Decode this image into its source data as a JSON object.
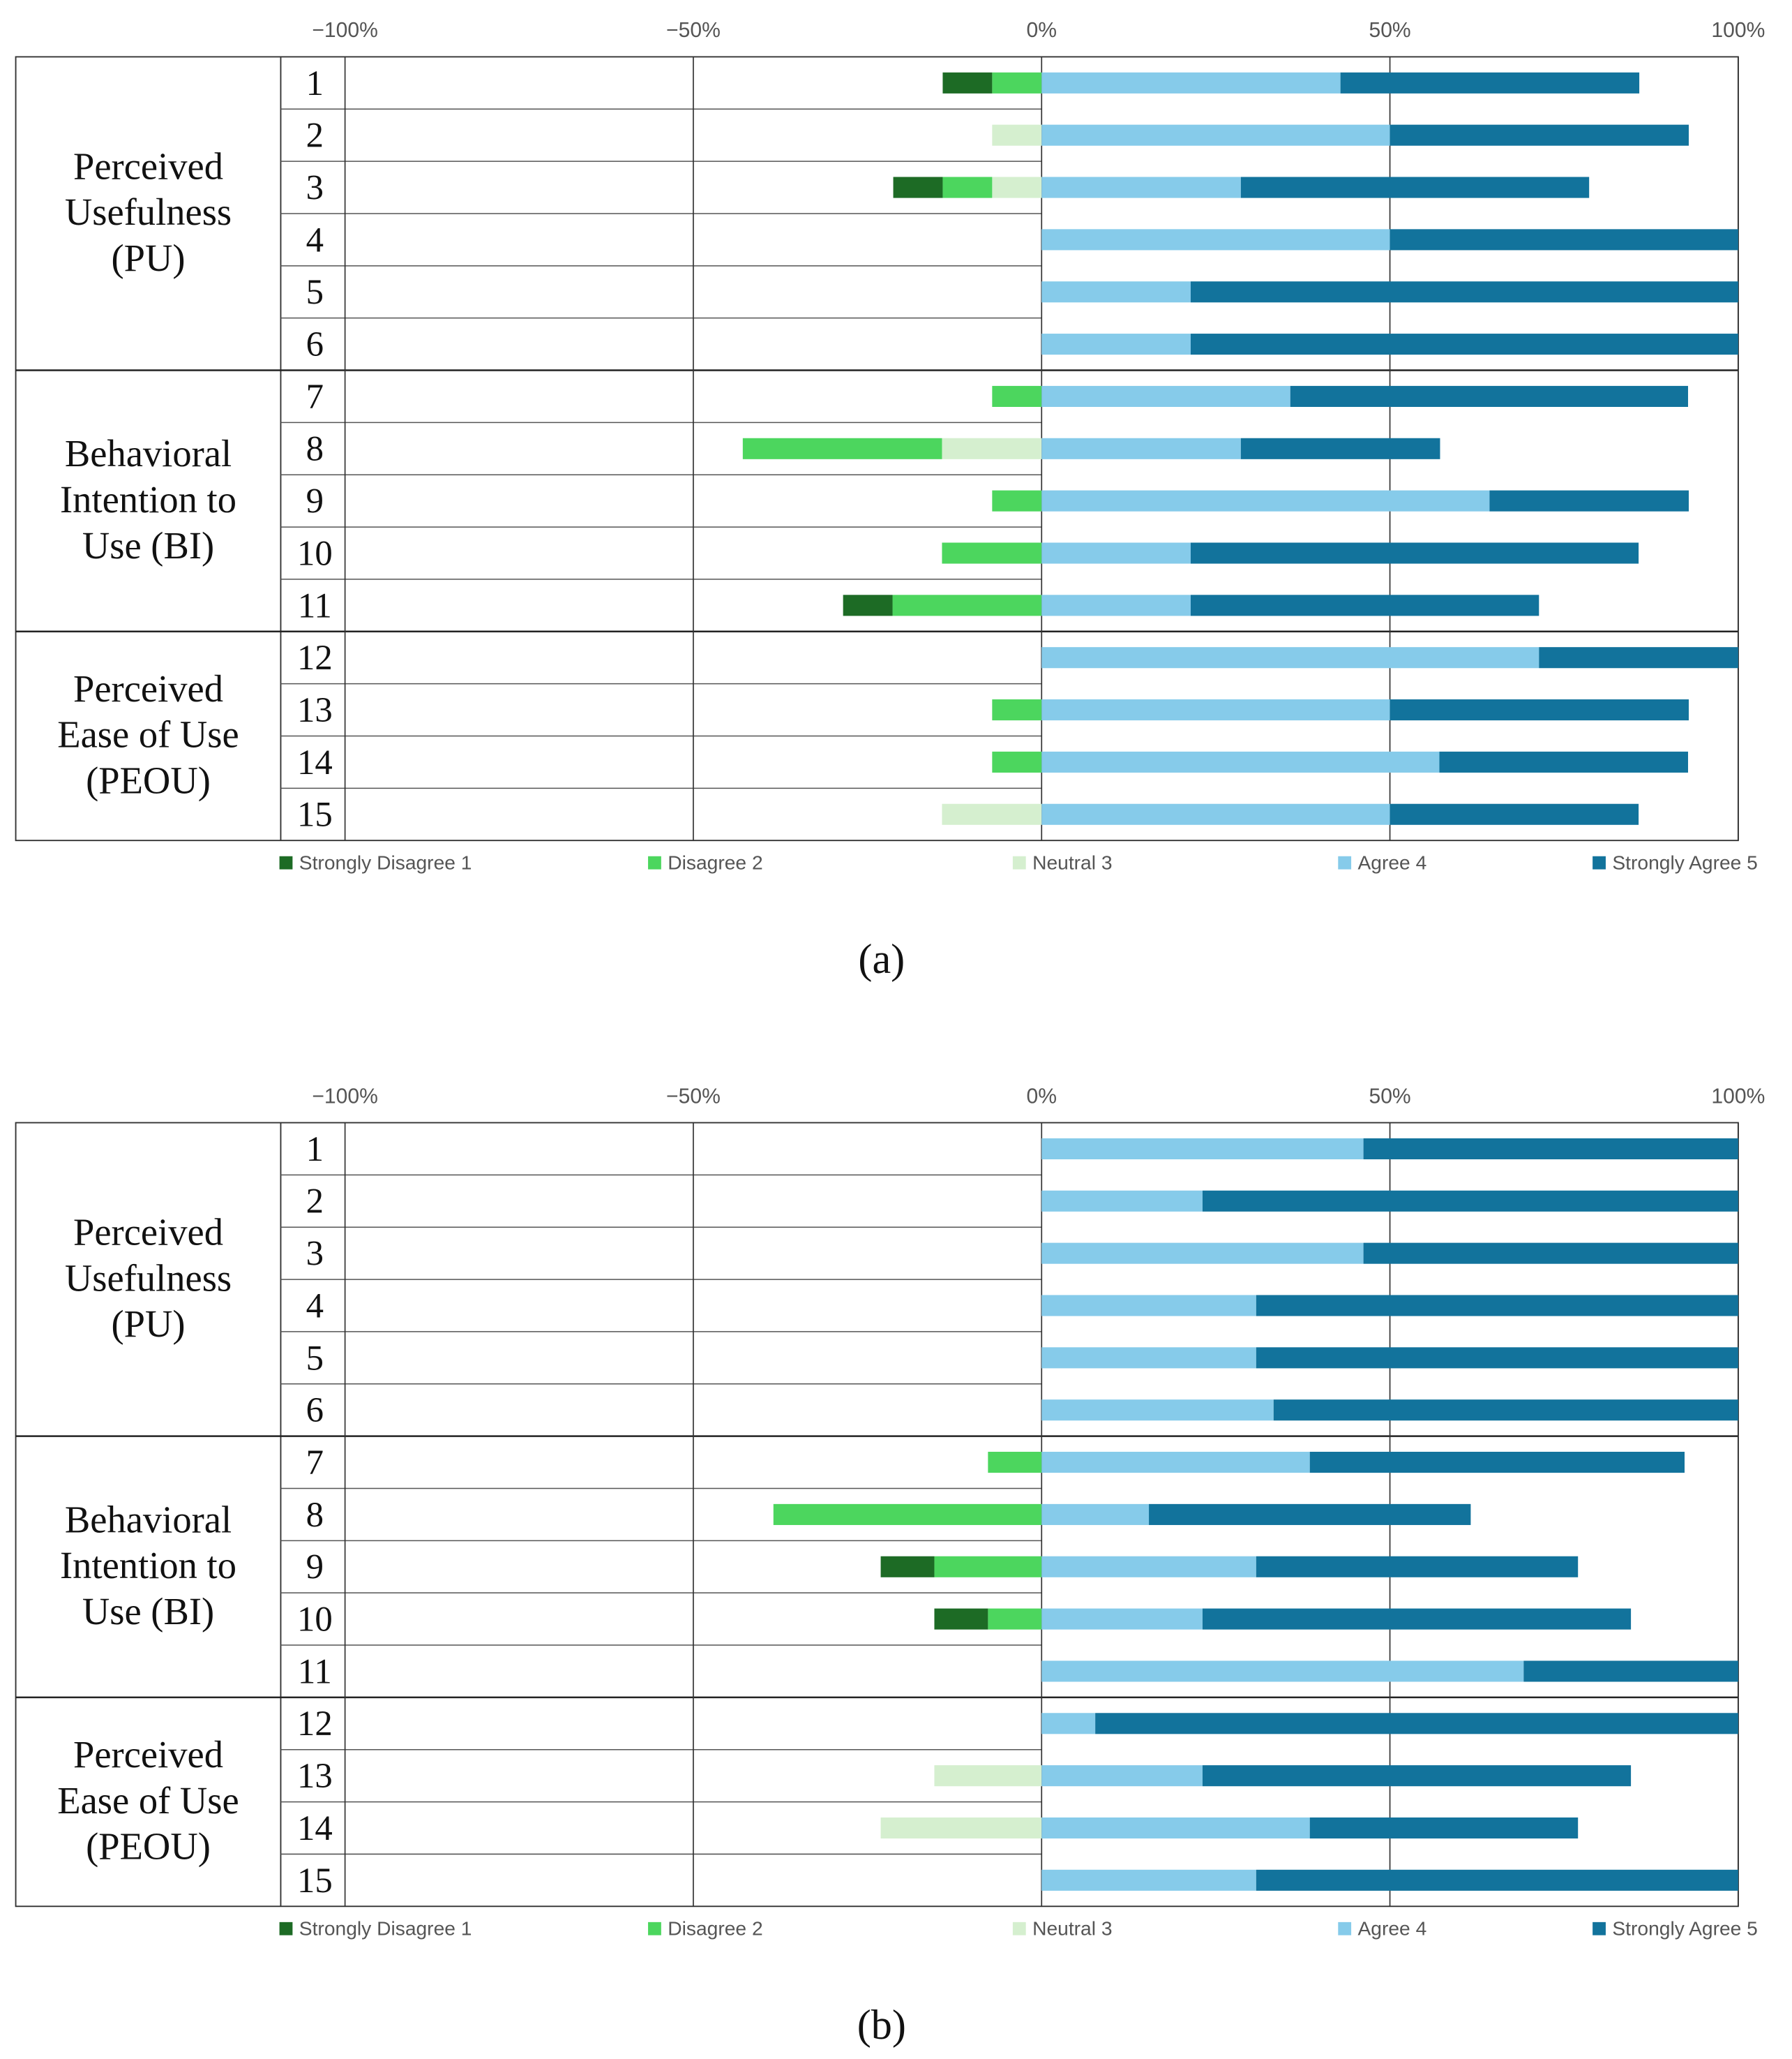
{
  "chart_data": [
    {
      "type": "diverging-bar",
      "label": "(a)",
      "groups": [
        {
          "label": "Perceived Usefulness (PU)",
          "categories": [
            "1",
            "2",
            "3",
            "4",
            "5",
            "6"
          ]
        },
        {
          "label": "Behavioral Intention to Use (BI)",
          "categories": [
            "7",
            "8",
            "9",
            "10",
            "11"
          ]
        },
        {
          "label": "Perceived Ease of Use (PEOU)",
          "categories": [
            "12",
            "13",
            "14",
            "15"
          ]
        }
      ],
      "xlim": [
        -100,
        100
      ],
      "xticks": [
        {
          "value": -100,
          "label": "−100%"
        },
        {
          "value": -50,
          "label": "−50%"
        },
        {
          "value": 0,
          "label": "0%"
        },
        {
          "value": 50,
          "label": "50%"
        },
        {
          "value": 100,
          "label": "100%"
        }
      ],
      "grid": true,
      "series": [
        {
          "name": "Strongly Disagree 1",
          "color": "#1d6b25",
          "values": [
            -7.1,
            0,
            -7.1,
            0,
            0,
            0,
            0,
            0,
            0,
            0,
            -7.1,
            0,
            0,
            0,
            0
          ]
        },
        {
          "name": "Disagree 2",
          "color": "#4cd65e",
          "values": [
            -7.1,
            0,
            -7.1,
            0,
            0,
            0,
            -7.1,
            -28.6,
            -7.1,
            -14.3,
            -21.4,
            0,
            -7.1,
            -7.1,
            0
          ]
        },
        {
          "name": "Neutral 3",
          "color": "#d5efcf",
          "values": [
            0,
            -7.1,
            -7.1,
            0,
            0,
            0,
            0,
            -14.3,
            0,
            0,
            0,
            0,
            0,
            0,
            -14.3
          ]
        },
        {
          "name": "Agree 4",
          "color": "#86cbea",
          "values": [
            42.9,
            50,
            28.6,
            50,
            21.4,
            21.4,
            35.7,
            28.6,
            64.3,
            21.4,
            21.4,
            71.4,
            50,
            57.1,
            50
          ]
        },
        {
          "name": "Strongly Agree 5",
          "color": "#12739c",
          "values": [
            42.9,
            42.9,
            50,
            50,
            78.6,
            78.6,
            57.1,
            28.6,
            28.6,
            64.3,
            50,
            28.6,
            42.9,
            35.7,
            35.7
          ]
        }
      ]
    },
    {
      "type": "diverging-bar",
      "label": "(b)",
      "groups": [
        {
          "label": "Perceived Usefulness (PU)",
          "categories": [
            "1",
            "2",
            "3",
            "4",
            "5",
            "6"
          ]
        },
        {
          "label": "Behavioral Intention to Use (BI)",
          "categories": [
            "7",
            "8",
            "9",
            "10",
            "11"
          ]
        },
        {
          "label": "Perceived Ease of Use (PEOU)",
          "categories": [
            "12",
            "13",
            "14",
            "15"
          ]
        }
      ],
      "xlim": [
        -100,
        100
      ],
      "xticks": [
        {
          "value": -100,
          "label": "−100%"
        },
        {
          "value": -50,
          "label": "−50%"
        },
        {
          "value": 0,
          "label": "0%"
        },
        {
          "value": 50,
          "label": "50%"
        },
        {
          "value": 100,
          "label": "100%"
        }
      ],
      "grid": true,
      "series": [
        {
          "name": "Strongly Disagree 1",
          "color": "#1d6b25",
          "values": [
            0,
            0,
            0,
            0,
            0,
            0,
            0,
            0,
            -7.7,
            -7.7,
            0,
            0,
            0,
            0,
            0
          ]
        },
        {
          "name": "Disagree 2",
          "color": "#4cd65e",
          "values": [
            0,
            0,
            0,
            0,
            0,
            0,
            -7.7,
            -38.5,
            -15.4,
            -7.7,
            0,
            0,
            0,
            0,
            0
          ]
        },
        {
          "name": "Neutral 3",
          "color": "#d5efcf",
          "values": [
            0,
            0,
            0,
            0,
            0,
            0,
            0,
            0,
            0,
            0,
            0,
            0,
            -15.4,
            -23.1,
            0
          ]
        },
        {
          "name": "Agree 4",
          "color": "#86cbea",
          "values": [
            46.2,
            23.1,
            46.2,
            30.8,
            30.8,
            33.3,
            38.5,
            15.4,
            30.8,
            23.1,
            69.2,
            7.7,
            23.1,
            38.5,
            30.8
          ]
        },
        {
          "name": "Strongly Agree 5",
          "color": "#12739c",
          "values": [
            53.8,
            76.9,
            53.8,
            69.2,
            69.2,
            66.7,
            53.8,
            46.2,
            46.2,
            61.5,
            30.8,
            92.3,
            61.5,
            38.5,
            69.2
          ]
        }
      ]
    }
  ]
}
